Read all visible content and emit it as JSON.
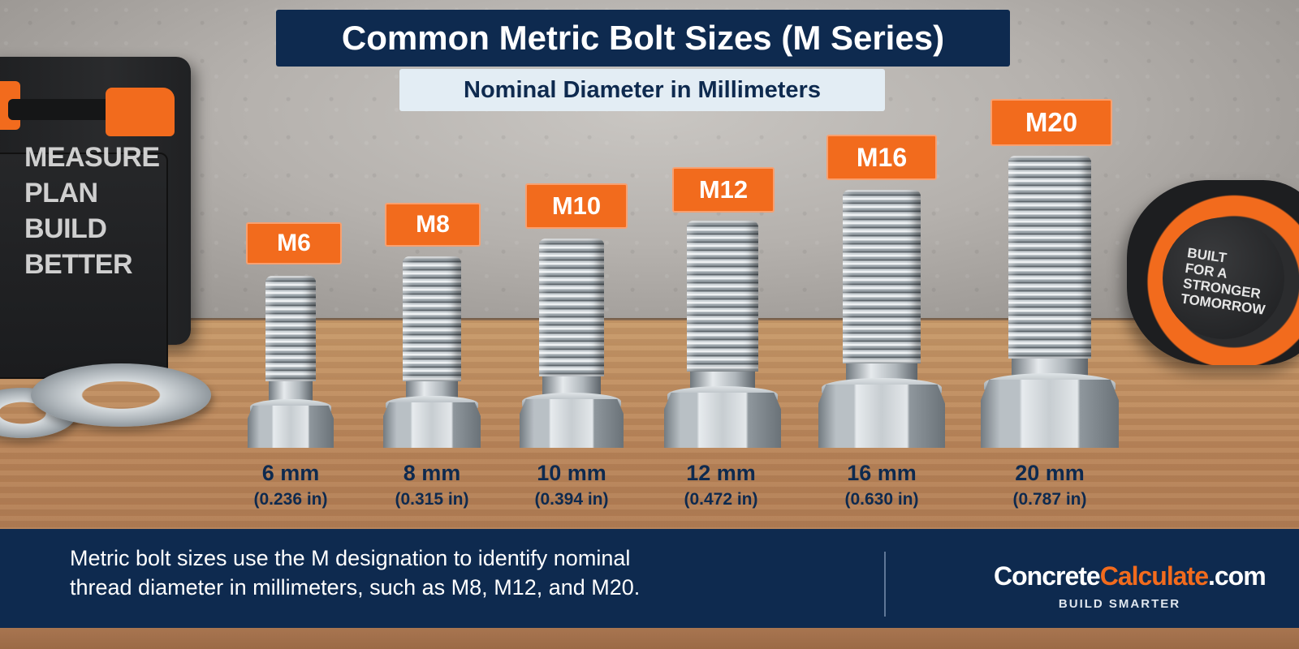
{
  "title": "Common Metric Bolt Sizes (M Series)",
  "subtitle": "Nominal Diameter in Millimeters",
  "toolcase_text": [
    "MEASURE",
    "PLAN",
    "BUILD",
    "BETTER"
  ],
  "tape_text": [
    "BUILT",
    "FOR A",
    "STRONGER",
    "TOMORROW"
  ],
  "bolts": [
    {
      "label": "M6",
      "mm": "6 mm",
      "inch": "(0.236 in)"
    },
    {
      "label": "M8",
      "mm": "8 mm",
      "inch": "(0.315 in)"
    },
    {
      "label": "M10",
      "mm": "10 mm",
      "inch": "(0.394 in)"
    },
    {
      "label": "M12",
      "mm": "12 mm",
      "inch": "(0.472 in)"
    },
    {
      "label": "M16",
      "mm": "16 mm",
      "inch": "(0.630 in)"
    },
    {
      "label": "M20",
      "mm": "20 mm",
      "inch": "(0.787 in)"
    }
  ],
  "footer": {
    "line1": "Metric bolt sizes use the M designation to identify nominal",
    "line2": "thread diameter in millimeters, such as M8, M12, and M20."
  },
  "brand": {
    "part1": "Concrete",
    "part2": "Calculate",
    "part3": ".com",
    "tagline": "BUILD SMARTER"
  },
  "colors": {
    "navy": "#0e2a4f",
    "orange": "#f26b1d",
    "light_panel": "#e3edf4"
  }
}
